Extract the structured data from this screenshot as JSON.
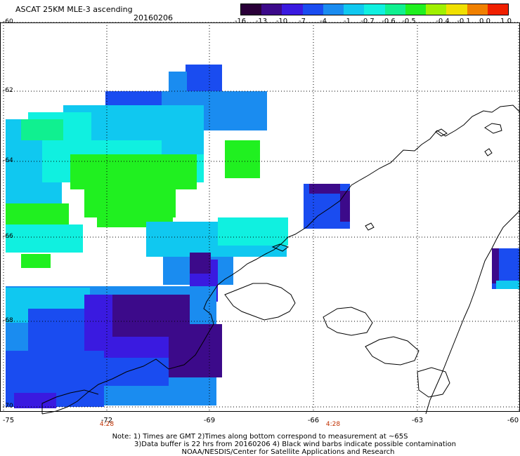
{
  "title": "ASCAT 25KM MLE-3 ascending",
  "date": "20160206",
  "colorbar": {
    "labels": [
      "-16",
      "-13",
      "-10",
      "-7",
      "-4",
      "-1",
      "-0.7",
      "-0.6",
      "-0.5",
      "-0.4",
      "-0.1",
      "0.0",
      "1.0"
    ],
    "colors": [
      "#2a0038",
      "#3c0a8a",
      "#3a1ae0",
      "#1a4cf0",
      "#1a8cf0",
      "#10c8f0",
      "#10f0e0",
      "#10f090",
      "#20f020",
      "#a0f000",
      "#f0e000",
      "#f08000",
      "#f02000"
    ]
  },
  "lat_labels": [
    "-60",
    "-62",
    "-64",
    "-66",
    "-68",
    "-70"
  ],
  "lon_labels": [
    "-75",
    "-72",
    "-69",
    "-66",
    "-63",
    "-60"
  ],
  "time_labels": [
    "4:28",
    "4:28"
  ],
  "notes": [
    "Note: 1) Times are GMT 2)Times along bottom correspond to measurement at ~65S",
    "3)Data buffer is 22 hrs from 20160206 4) Black wind barbs indicate possible contamination",
    "NOAA/NESDIS/Center for Satellite Applications and Research"
  ],
  "colors": {
    "coast": "#000000",
    "grid": "#000000"
  }
}
